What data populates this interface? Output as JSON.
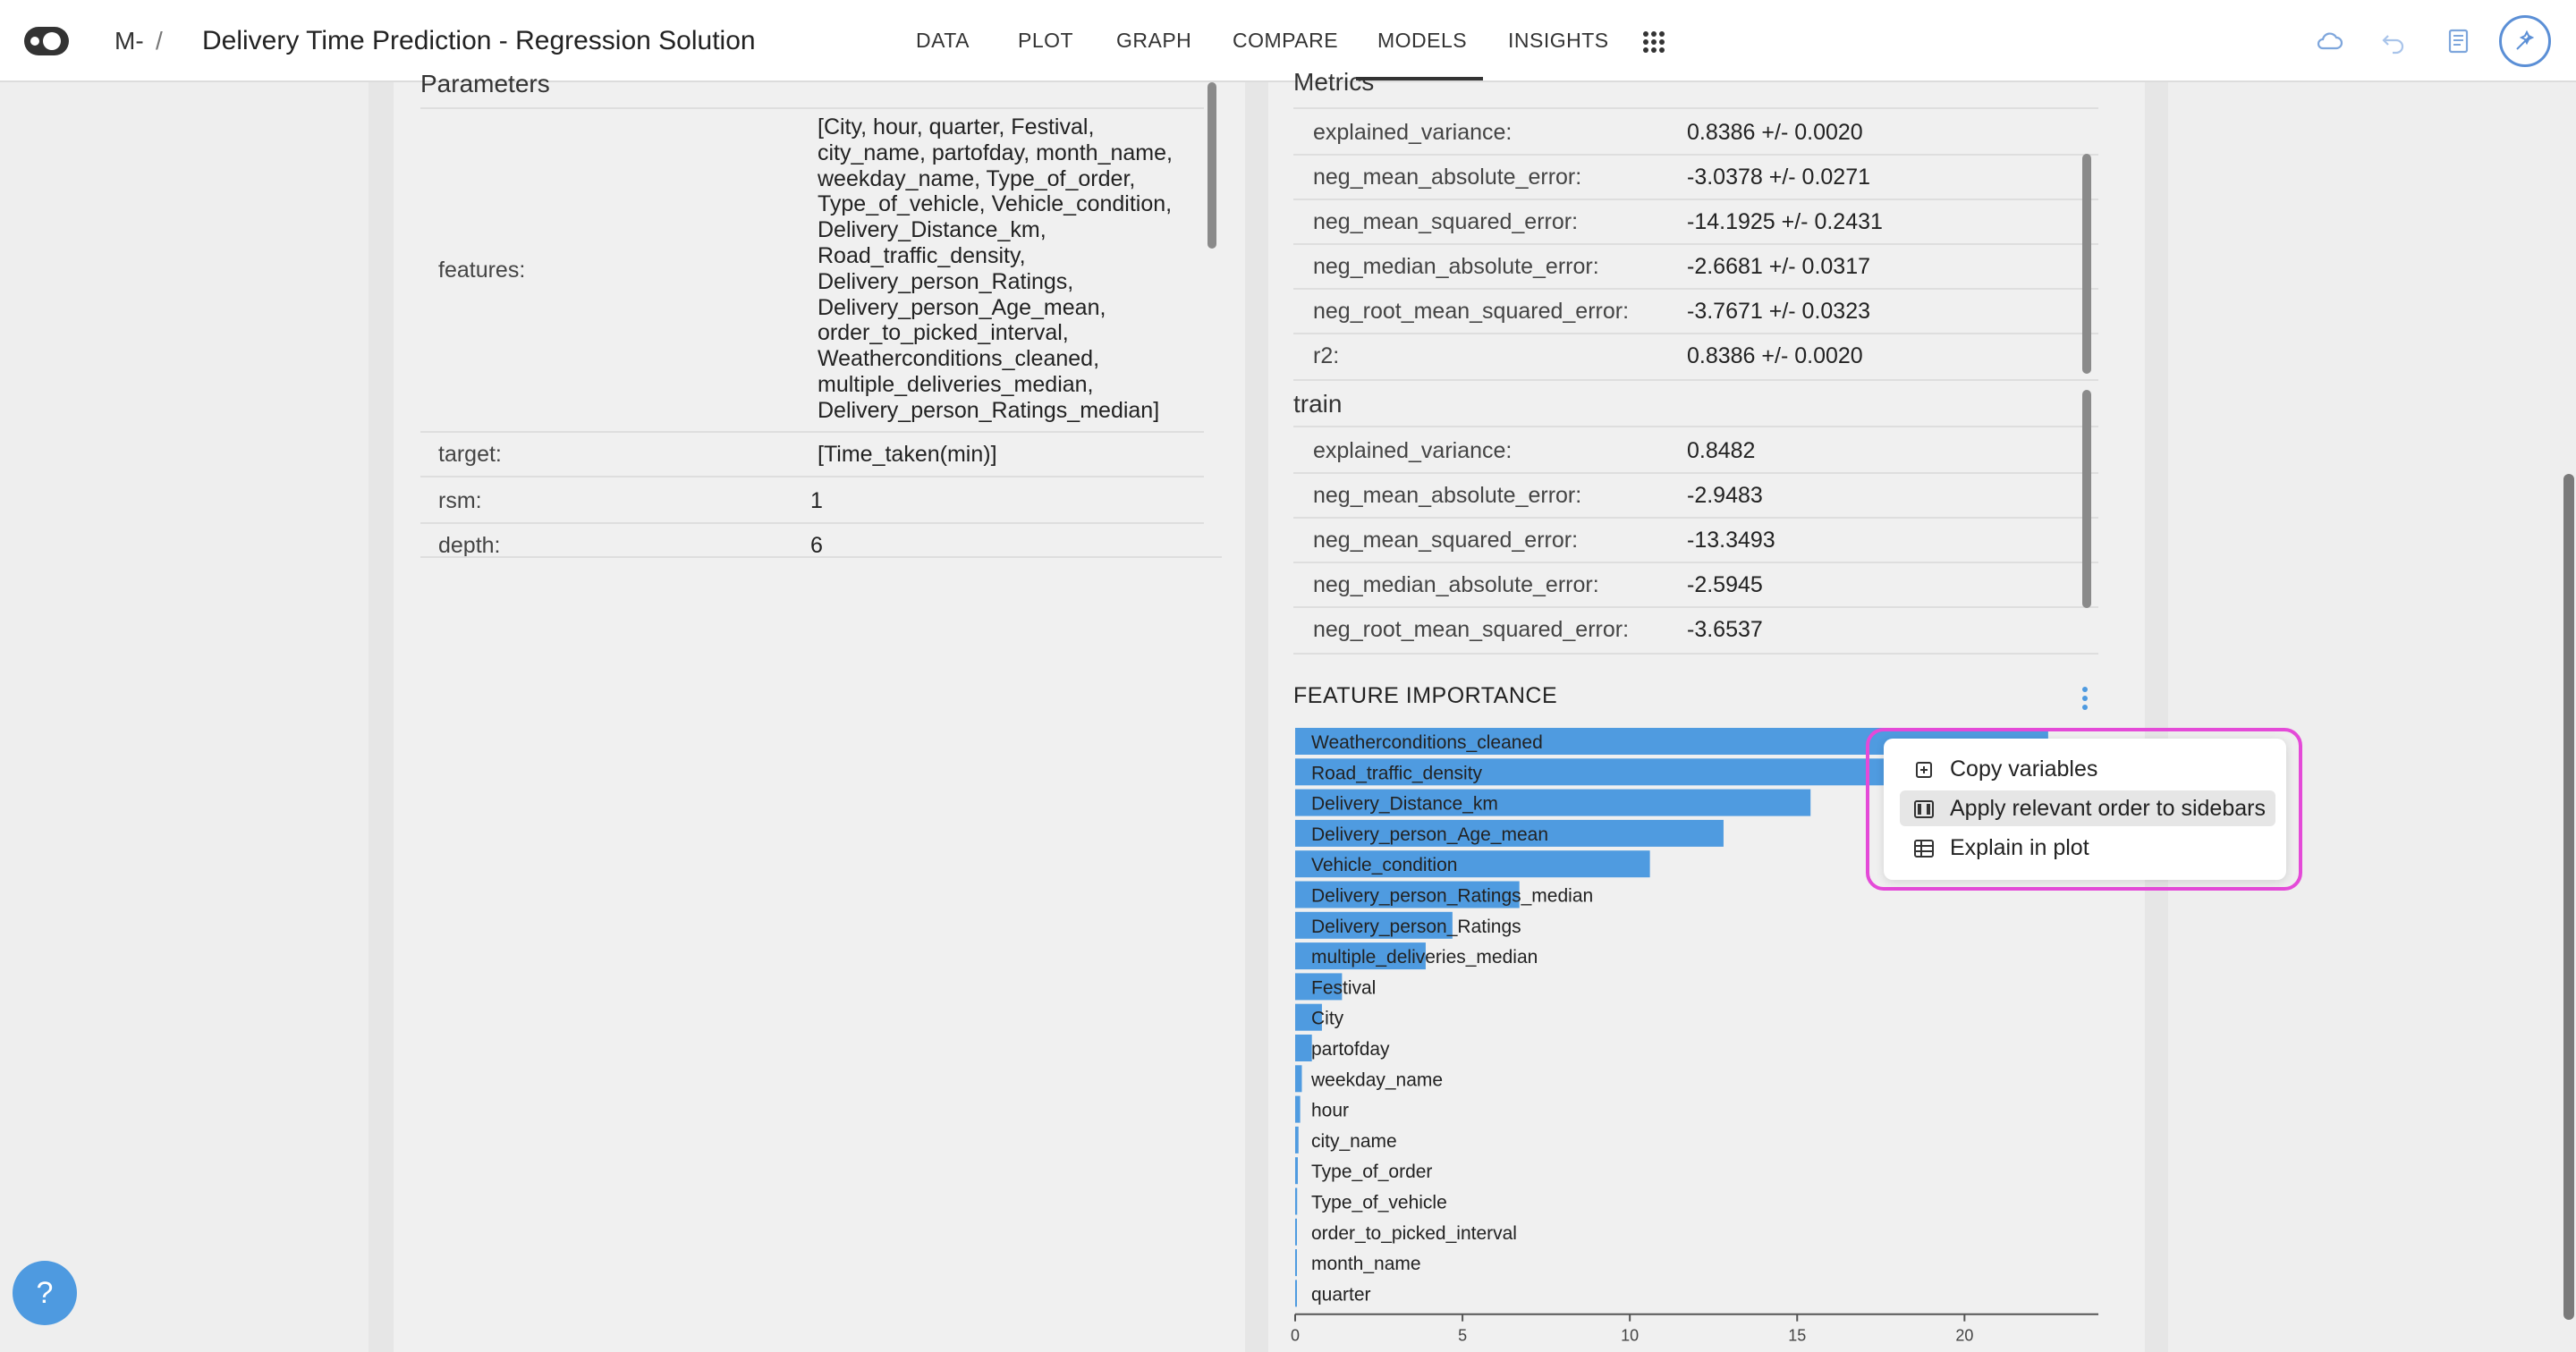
{
  "header": {
    "crumb_model": "M-",
    "crumb_sep": "/",
    "title": "Delivery Time Prediction - Regression Solution",
    "nav": [
      "DATA",
      "PLOT",
      "GRAPH",
      "COMPARE",
      "MODELS",
      "INSIGHTS"
    ],
    "active_nav": "MODELS",
    "icons": [
      "app-logo-icon",
      "apps-grid-icon",
      "cloud-icon",
      "undo-icon",
      "notebook-icon",
      "assistant-icon"
    ]
  },
  "parameters": {
    "title": "Parameters",
    "features_label": "features:",
    "features_lines": [
      "[City, hour, quarter, Festival,",
      "city_name, partofday, month_name,",
      "weekday_name, Type_of_order,",
      "Type_of_vehicle, Vehicle_condition,",
      "Delivery_Distance_km,",
      "Road_traffic_density,",
      "Delivery_person_Ratings,",
      "Delivery_person_Age_mean,",
      "order_to_picked_interval,",
      "Weatherconditions_cleaned,",
      "multiple_deliveries_median,",
      "Delivery_person_Ratings_median]"
    ],
    "rows": [
      {
        "label": "target:",
        "value": "[Time_taken(min)]"
      },
      {
        "label": "rsm:",
        "value": "1"
      },
      {
        "label": "depth:",
        "value": "6"
      }
    ]
  },
  "metrics": {
    "title": "Metrics",
    "test_rows": [
      {
        "label": "explained_variance:",
        "value": "0.8386 +/- 0.0020"
      },
      {
        "label": "neg_mean_absolute_error:",
        "value": "-3.0378 +/- 0.0271"
      },
      {
        "label": "neg_mean_squared_error:",
        "value": "-14.1925 +/- 0.2431"
      },
      {
        "label": "neg_median_absolute_error:",
        "value": "-2.6681 +/- 0.0317"
      },
      {
        "label": "neg_root_mean_squared_error:",
        "value": "-3.7671 +/- 0.0323"
      },
      {
        "label": "r2:",
        "value": "0.8386 +/- 0.0020"
      }
    ],
    "train_title": "train",
    "train_rows": [
      {
        "label": "explained_variance:",
        "value": "0.8482"
      },
      {
        "label": "neg_mean_absolute_error:",
        "value": "-2.9483"
      },
      {
        "label": "neg_mean_squared_error:",
        "value": "-13.3493"
      },
      {
        "label": "neg_median_absolute_error:",
        "value": "-2.5945"
      },
      {
        "label": "neg_root_mean_squared_error:",
        "value": "-3.6537"
      }
    ]
  },
  "feature_importance": {
    "title": "FEATURE IMPORTANCE",
    "bar_color": "#4f9be0"
  },
  "chart_data": {
    "type": "bar",
    "orientation": "horizontal",
    "title": "FEATURE IMPORTANCE",
    "categories": [
      "Weatherconditions_cleaned",
      "Road_traffic_density",
      "Delivery_Distance_km",
      "Delivery_person_Age_mean",
      "Vehicle_condition",
      "Delivery_person_Ratings_median",
      "Delivery_person_Ratings",
      "multiple_deliveries_median",
      "Festival",
      "City",
      "partofday",
      "weekday_name",
      "hour",
      "city_name",
      "Type_of_order",
      "Type_of_vehicle",
      "order_to_picked_interval",
      "month_name",
      "quarter"
    ],
    "values": [
      22.5,
      18.0,
      15.4,
      12.8,
      10.6,
      6.7,
      4.7,
      3.9,
      1.4,
      0.8,
      0.5,
      0.2,
      0.15,
      0.1,
      0.08,
      0.06,
      0.05,
      0.03,
      0.02
    ],
    "xlim": [
      0,
      24
    ],
    "xticks": [
      0,
      5,
      10,
      15,
      20
    ],
    "xlabel": "",
    "ylabel": ""
  },
  "context_menu": {
    "items": [
      {
        "label": "Copy variables",
        "icon": "copy-variables-icon"
      },
      {
        "label": "Apply relevant order to sidebars",
        "icon": "sidebar-order-icon"
      },
      {
        "label": "Explain in plot",
        "icon": "table-icon"
      }
    ],
    "active_index": 1
  },
  "help": {
    "label": "?"
  }
}
